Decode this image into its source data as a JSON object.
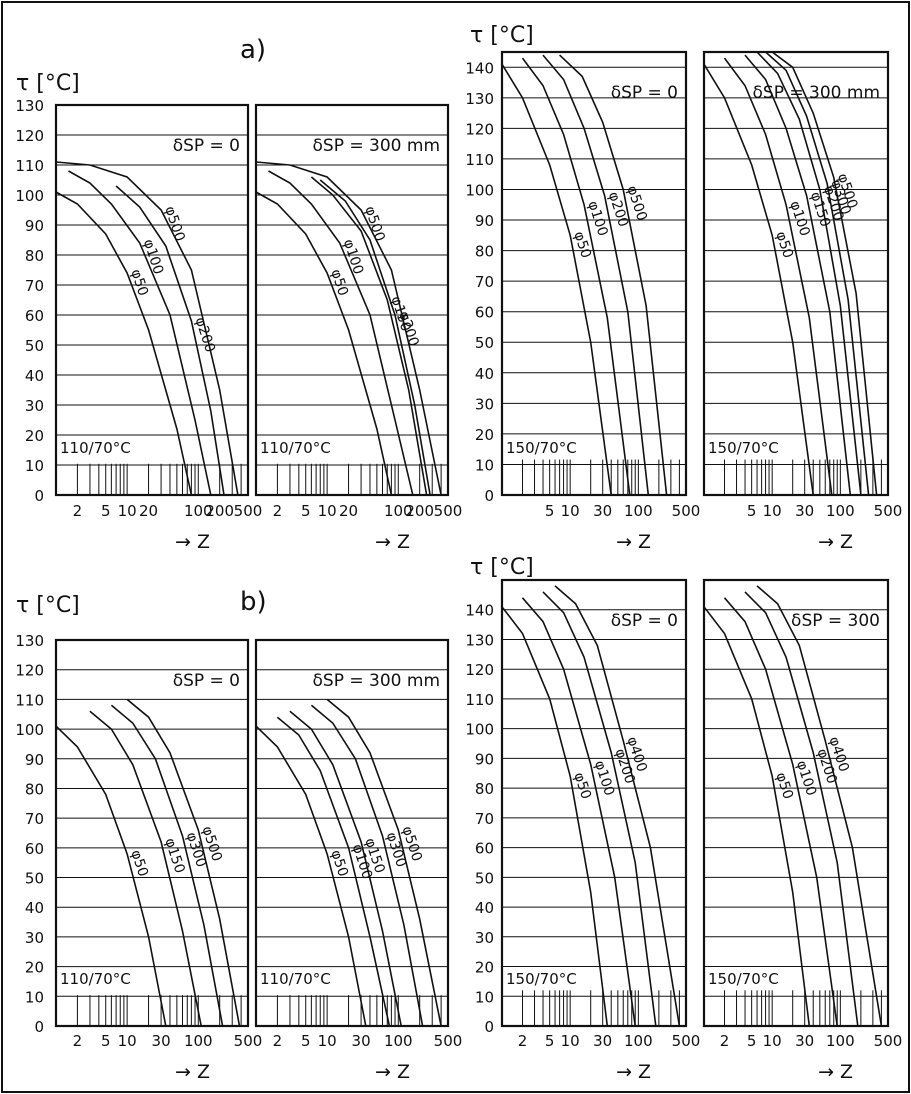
{
  "figure": {
    "section_labels": [
      "a)",
      "b)"
    ],
    "arrow_glyph": "→"
  },
  "chart_data": [
    {
      "type": "line",
      "group": "a) left",
      "ylabel": "τ [°C]",
      "xlabel": "Z",
      "log_x": true,
      "xlim": [
        1,
        500
      ],
      "x_ticks": [
        "2",
        "5",
        "10",
        "20",
        "100",
        "200",
        "500"
      ],
      "y_ticks": [
        0,
        10,
        20,
        30,
        40,
        50,
        60,
        70,
        80,
        90,
        100,
        110,
        120,
        130
      ],
      "ylim": [
        0,
        130
      ],
      "grid": true,
      "panels": [
        {
          "annotation": "δSP = 0",
          "condition": "110/70°C",
          "series": [
            {
              "name": "φ50",
              "x": [
                1,
                2,
                5,
                10,
                20,
                50,
                80
              ],
              "y": [
                101,
                97,
                87,
                74,
                55,
                22,
                0
              ]
            },
            {
              "name": "φ100",
              "x": [
                1.5,
                3,
                6,
                15,
                40,
                90,
                150
              ],
              "y": [
                108,
                104,
                97,
                84,
                60,
                25,
                0
              ]
            },
            {
              "name": "φ200",
              "x": [
                7,
                15,
                35,
                80,
                150,
                230
              ],
              "y": [
                103,
                96,
                83,
                58,
                28,
                0
              ]
            },
            {
              "name": "φ500",
              "x": [
                1,
                3,
                10,
                30,
                80,
                200,
                360
              ],
              "y": [
                111,
                110,
                106,
                95,
                75,
                35,
                0
              ]
            }
          ]
        },
        {
          "annotation": "δSP = 300 mm",
          "condition": "110/70°C",
          "series": [
            {
              "name": "φ50",
              "x": [
                1,
                2,
                5,
                10,
                20,
                50,
                80
              ],
              "y": [
                101,
                97,
                87,
                74,
                55,
                22,
                0
              ]
            },
            {
              "name": "φ100",
              "x": [
                1.5,
                3,
                6,
                15,
                40,
                90,
                160
              ],
              "y": [
                108,
                104,
                97,
                84,
                60,
                25,
                0
              ]
            },
            {
              "name": "φ150",
              "x": [
                6,
                12,
                30,
                70,
                140,
                250
              ],
              "y": [
                106,
                100,
                88,
                65,
                35,
                0
              ]
            },
            {
              "name": "φ200",
              "x": [
                8,
                18,
                40,
                90,
                170,
                280
              ],
              "y": [
                105,
                98,
                85,
                60,
                30,
                0
              ]
            },
            {
              "name": "φ500",
              "x": [
                1,
                3,
                10,
                30,
                80,
                200,
                400
              ],
              "y": [
                111,
                110,
                106,
                95,
                75,
                35,
                0
              ]
            }
          ]
        }
      ]
    },
    {
      "type": "line",
      "group": "a) right",
      "ylabel": "τ [°C]",
      "xlabel": "Z",
      "log_x": true,
      "xlim": [
        1,
        500
      ],
      "x_ticks": [
        "5",
        "10",
        "30",
        "100",
        "500"
      ],
      "y_ticks": [
        0,
        10,
        20,
        30,
        40,
        50,
        60,
        70,
        80,
        90,
        100,
        110,
        120,
        130,
        140
      ],
      "ylim": [
        0,
        145
      ],
      "grid": true,
      "panels": [
        {
          "annotation": "δSP = 0",
          "condition": "150/70°C",
          "series": [
            {
              "name": "φ50",
              "x": [
                1,
                2,
                5,
                10,
                20,
                40
              ],
              "y": [
                141,
                130,
                108,
                85,
                50,
                0
              ]
            },
            {
              "name": "φ100",
              "x": [
                2,
                4,
                8,
                16,
                35,
                75
              ],
              "y": [
                143,
                134,
                118,
                95,
                58,
                0
              ]
            },
            {
              "name": "φ200",
              "x": [
                4,
                8,
                16,
                32,
                70,
                140
              ],
              "y": [
                144,
                136,
                120,
                98,
                60,
                0
              ]
            },
            {
              "name": "φ500",
              "x": [
                7,
                15,
                30,
                60,
                130,
                260
              ],
              "y": [
                144,
                137,
                122,
                100,
                62,
                0
              ]
            }
          ]
        },
        {
          "annotation": "δSP = 300 mm",
          "condition": "150/70°C",
          "series": [
            {
              "name": "φ50",
              "x": [
                1,
                2,
                5,
                10,
                20,
                40
              ],
              "y": [
                141,
                130,
                108,
                85,
                50,
                0
              ]
            },
            {
              "name": "φ100",
              "x": [
                2,
                4,
                8,
                16,
                35,
                75
              ],
              "y": [
                143,
                134,
                118,
                95,
                58,
                0
              ]
            },
            {
              "name": "φ150",
              "x": [
                4,
                8,
                16,
                32,
                70,
                140
              ],
              "y": [
                144,
                136,
                120,
                98,
                60,
                0
              ]
            },
            {
              "name": "φ200",
              "x": [
                6,
                12,
                25,
                50,
                100,
                200
              ],
              "y": [
                145,
                138,
                123,
                100,
                62,
                0
              ]
            },
            {
              "name": "φ300",
              "x": [
                8,
                16,
                32,
                64,
                130,
                260
              ],
              "y": [
                145,
                139,
                124,
                102,
                64,
                0
              ]
            },
            {
              "name": "φ500",
              "x": [
                10,
                20,
                40,
                80,
                170,
                340
              ],
              "y": [
                145,
                140,
                125,
                104,
                66,
                0
              ]
            }
          ]
        }
      ]
    },
    {
      "type": "line",
      "group": "b) left",
      "ylabel": "τ [°C]",
      "xlabel": "Z",
      "log_x": true,
      "xlim": [
        1,
        500
      ],
      "x_ticks": [
        "2",
        "5",
        "10",
        "30",
        "100",
        "500"
      ],
      "y_ticks": [
        0,
        10,
        20,
        30,
        40,
        50,
        60,
        70,
        80,
        90,
        100,
        110,
        120,
        130
      ],
      "ylim": [
        0,
        130
      ],
      "grid": true,
      "panels": [
        {
          "annotation": "δSP = 0",
          "condition": "110/70°C",
          "series": [
            {
              "name": "φ50",
              "x": [
                1,
                2,
                5,
                10,
                20,
                35
              ],
              "y": [
                101,
                94,
                78,
                58,
                30,
                0
              ]
            },
            {
              "name": "φ150",
              "x": [
                3,
                6,
                12,
                30,
                60,
                110
              ],
              "y": [
                106,
                100,
                88,
                62,
                32,
                0
              ]
            },
            {
              "name": "φ300",
              "x": [
                6,
                12,
                25,
                60,
                120,
                220
              ],
              "y": [
                108,
                102,
                90,
                64,
                34,
                0
              ]
            },
            {
              "name": "φ500",
              "x": [
                10,
                20,
                40,
                100,
                200,
                380
              ],
              "y": [
                110,
                104,
                92,
                66,
                36,
                0
              ]
            }
          ]
        },
        {
          "annotation": "δSP = 300 mm",
          "condition": "110/70°C",
          "series": [
            {
              "name": "φ50",
              "x": [
                1,
                2,
                5,
                10,
                20,
                35
              ],
              "y": [
                101,
                94,
                78,
                58,
                30,
                0
              ]
            },
            {
              "name": "φ100",
              "x": [
                2,
                4,
                8,
                20,
                40,
                75
              ],
              "y": [
                104,
                98,
                86,
                60,
                30,
                0
              ]
            },
            {
              "name": "φ150",
              "x": [
                3,
                6,
                12,
                30,
                60,
                110
              ],
              "y": [
                106,
                100,
                88,
                62,
                32,
                0
              ]
            },
            {
              "name": "φ300",
              "x": [
                6,
                12,
                25,
                60,
                120,
                220
              ],
              "y": [
                108,
                102,
                90,
                64,
                34,
                0
              ]
            },
            {
              "name": "φ500",
              "x": [
                10,
                20,
                40,
                100,
                200,
                400
              ],
              "y": [
                110,
                104,
                92,
                66,
                36,
                0
              ]
            }
          ]
        }
      ]
    },
    {
      "type": "line",
      "group": "b) right",
      "ylabel": "τ [°C]",
      "xlabel": "Z",
      "log_x": true,
      "xlim": [
        1,
        500
      ],
      "x_ticks": [
        "2",
        "5",
        "10",
        "30",
        "100",
        "500"
      ],
      "y_ticks": [
        0,
        10,
        20,
        30,
        40,
        50,
        60,
        70,
        80,
        90,
        100,
        110,
        120,
        130,
        140
      ],
      "ylim": [
        0,
        150
      ],
      "grid": true,
      "panels": [
        {
          "annotation": "δSP = 0",
          "condition": "150/70°C",
          "series": [
            {
              "name": "φ50",
              "x": [
                1,
                2,
                5,
                10,
                20,
                35
              ],
              "y": [
                141,
                132,
                110,
                84,
                45,
                0
              ]
            },
            {
              "name": "φ100",
              "x": [
                2,
                4,
                8,
                20,
                45,
                90
              ],
              "y": [
                144,
                136,
                120,
                88,
                50,
                0
              ]
            },
            {
              "name": "φ200",
              "x": [
                4,
                8,
                16,
                40,
                90,
                180
              ],
              "y": [
                146,
                139,
                124,
                92,
                55,
                0
              ]
            },
            {
              "name": "φ400",
              "x": [
                6,
                12,
                25,
                60,
                150,
                400
              ],
              "y": [
                148,
                142,
                128,
                96,
                60,
                0
              ]
            }
          ]
        },
        {
          "annotation": "δSP = 300",
          "condition": "150/70°C",
          "series": [
            {
              "name": "φ50",
              "x": [
                1,
                2,
                5,
                10,
                20,
                35
              ],
              "y": [
                141,
                132,
                110,
                84,
                45,
                0
              ]
            },
            {
              "name": "φ100",
              "x": [
                2,
                4,
                8,
                20,
                45,
                90
              ],
              "y": [
                144,
                136,
                120,
                88,
                50,
                0
              ]
            },
            {
              "name": "φ200",
              "x": [
                4,
                8,
                16,
                40,
                90,
                180
              ],
              "y": [
                146,
                139,
                124,
                92,
                55,
                0
              ]
            },
            {
              "name": "φ400",
              "x": [
                6,
                12,
                25,
                60,
                150,
                400
              ],
              "y": [
                148,
                142,
                128,
                96,
                60,
                0
              ]
            }
          ]
        }
      ]
    }
  ]
}
